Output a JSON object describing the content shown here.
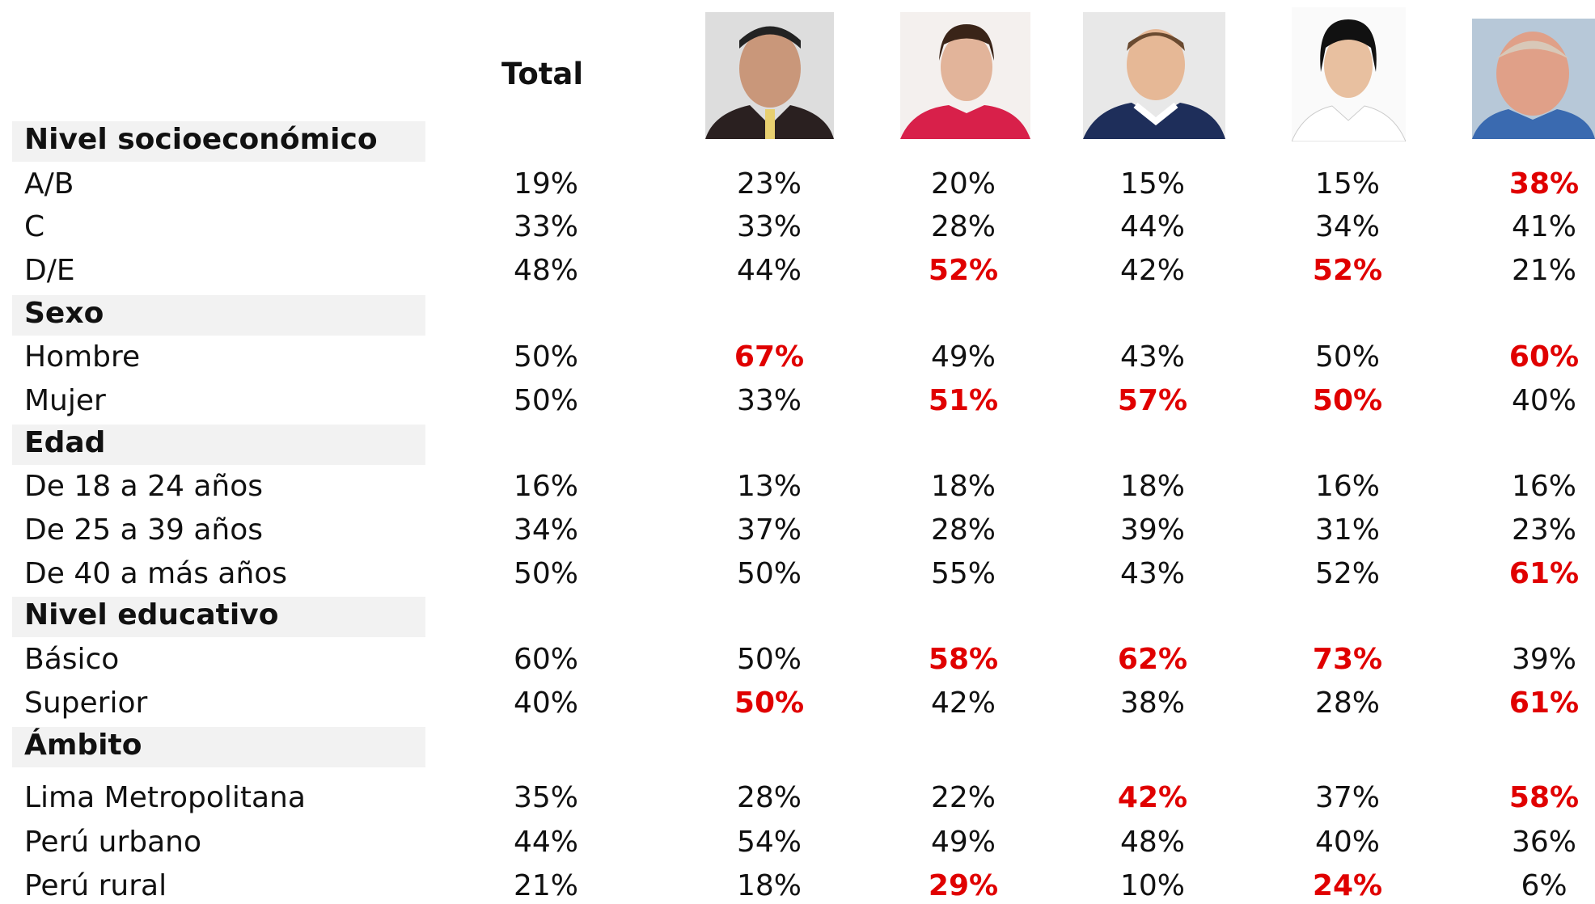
{
  "table": {
    "header": {
      "total": "Total"
    },
    "sections": [
      {
        "title": "Nivel socioeconómico",
        "rows": [
          {
            "label": "A/B",
            "cells": [
              "19%",
              "23%",
              "20%",
              "15%",
              "15%",
              "38%"
            ],
            "red_bold": [
              false,
              false,
              false,
              false,
              false,
              true
            ]
          },
          {
            "label": "C",
            "cells": [
              "33%",
              "33%",
              "28%",
              "44%",
              "34%",
              "41%"
            ],
            "red_bold": [
              false,
              false,
              false,
              false,
              false,
              false
            ]
          },
          {
            "label": "D/E",
            "cells": [
              "48%",
              "44%",
              "52%",
              "42%",
              "52%",
              "21%"
            ],
            "red_bold": [
              false,
              false,
              true,
              false,
              true,
              false
            ]
          }
        ]
      },
      {
        "title": "Sexo",
        "rows": [
          {
            "label": "Hombre",
            "cells": [
              "50%",
              "67%",
              "49%",
              "43%",
              "50%",
              "60%"
            ],
            "red_bold": [
              false,
              true,
              false,
              false,
              false,
              true
            ]
          },
          {
            "label": "Mujer",
            "cells": [
              "50%",
              "33%",
              "51%",
              "57%",
              "50%",
              "40%"
            ],
            "red_bold": [
              false,
              false,
              true,
              true,
              true,
              false
            ]
          }
        ]
      },
      {
        "title": "Edad",
        "rows": [
          {
            "label": "De 18 a 24 años",
            "cells": [
              "16%",
              "13%",
              "18%",
              "18%",
              "16%",
              "16%"
            ],
            "red_bold": [
              false,
              false,
              false,
              false,
              false,
              false
            ]
          },
          {
            "label": "De 25 a 39 años",
            "cells": [
              "34%",
              "37%",
              "28%",
              "39%",
              "31%",
              "23%"
            ],
            "red_bold": [
              false,
              false,
              false,
              false,
              false,
              false
            ]
          },
          {
            "label": "De 40 a más años",
            "cells": [
              "50%",
              "50%",
              "55%",
              "43%",
              "52%",
              "61%"
            ],
            "red_bold": [
              false,
              false,
              false,
              false,
              false,
              true
            ]
          }
        ]
      },
      {
        "title": "Nivel educativo",
        "rows": [
          {
            "label": "Básico",
            "cells": [
              "60%",
              "50%",
              "58%",
              "62%",
              "73%",
              "39%"
            ],
            "red_bold": [
              false,
              false,
              true,
              true,
              true,
              false
            ]
          },
          {
            "label": "Superior",
            "cells": [
              "40%",
              "50%",
              "42%",
              "38%",
              "28%",
              "61%"
            ],
            "red_bold": [
              false,
              true,
              false,
              false,
              false,
              true
            ]
          }
        ]
      },
      {
        "title": "Ámbito",
        "rows": [
          {
            "label": "Lima Metropolitana",
            "cells": [
              "35%",
              "28%",
              "22%",
              "42%",
              "37%",
              "58%"
            ],
            "red_bold": [
              false,
              false,
              false,
              true,
              false,
              true
            ]
          },
          {
            "label": "Perú urbano",
            "cells": [
              "44%",
              "54%",
              "49%",
              "48%",
              "40%",
              "36%"
            ],
            "red_bold": [
              false,
              false,
              false,
              false,
              false,
              false
            ]
          },
          {
            "label": "Perú rural",
            "cells": [
              "21%",
              "18%",
              "29%",
              "10%",
              "24%",
              "6%"
            ],
            "red_bold": [
              false,
              false,
              true,
              false,
              true,
              false
            ]
          }
        ]
      }
    ]
  }
}
